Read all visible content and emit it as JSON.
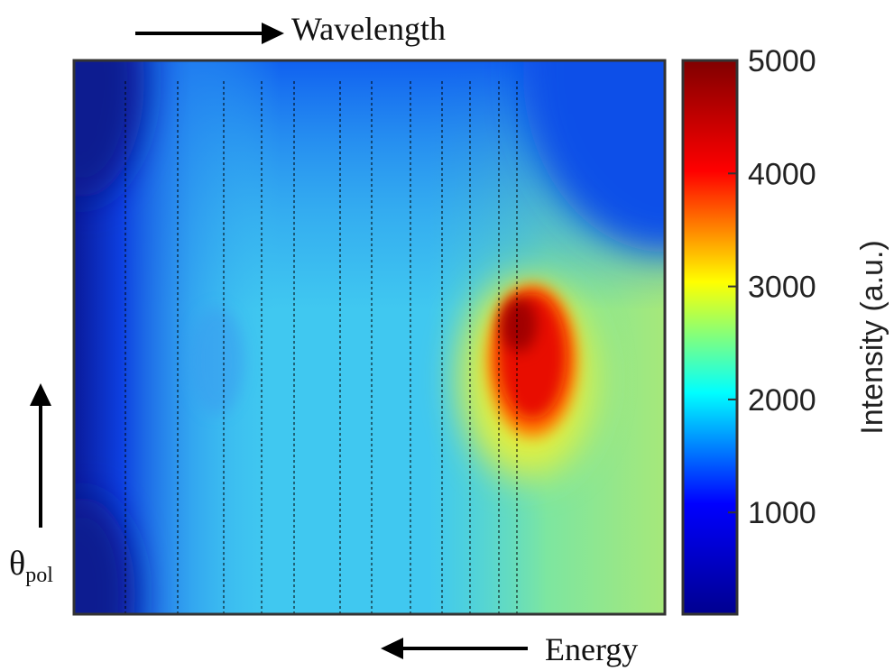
{
  "chart_data": {
    "type": "heatmap",
    "top_arrow_label": "Wavelength",
    "bottom_arrow_label": "Energy",
    "left_arrow_label": {
      "symbol": "θ",
      "subscript": "pol"
    },
    "colorbar_label": "Intensity (a.u.)",
    "clim": [
      100,
      5000
    ],
    "cticks": [
      1000,
      2000,
      3000,
      4000,
      5000
    ],
    "colormap": [
      "#00008f",
      "#0000ff",
      "#00ffff",
      "#ffff00",
      "#ff0000",
      "#800000"
    ]
  }
}
